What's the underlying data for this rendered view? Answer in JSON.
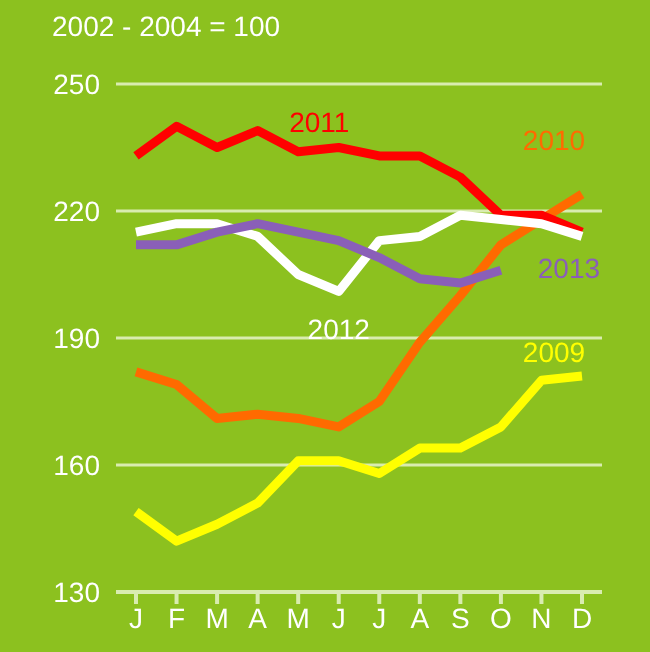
{
  "chart_data": {
    "type": "line",
    "title": "2002 - 2004 = 100",
    "categories": [
      "J",
      "F",
      "M",
      "A",
      "M",
      "J",
      "J",
      "A",
      "S",
      "O",
      "N",
      "D"
    ],
    "series": [
      {
        "name": "2009",
        "color": "#ffff00",
        "values": [
          149,
          142,
          146,
          151,
          161,
          161,
          158,
          164,
          164,
          169,
          180,
          181
        ]
      },
      {
        "name": "2010",
        "color": "#ff6a00",
        "values": [
          182,
          179,
          171,
          172,
          171,
          169,
          175,
          189,
          200,
          212,
          218,
          224
        ]
      },
      {
        "name": "2011",
        "color": "#ff0000",
        "values": [
          233,
          240,
          235,
          239,
          234,
          235,
          233,
          233,
          228,
          219,
          219,
          215
        ]
      },
      {
        "name": "2012",
        "color": "#ffffff",
        "values": [
          215,
          217,
          217,
          214,
          205,
          201,
          213,
          214,
          219,
          218,
          217,
          214
        ]
      },
      {
        "name": "2013",
        "color": "#8a5fb8",
        "values": [
          212,
          212,
          215,
          217,
          215,
          213,
          209,
          204,
          203,
          206,
          null,
          null
        ]
      }
    ],
    "ylim": [
      130,
      250
    ],
    "yticks": [
      130,
      160,
      190,
      220,
      250
    ],
    "grid": "y",
    "marker": "none",
    "line_style": "solid"
  }
}
